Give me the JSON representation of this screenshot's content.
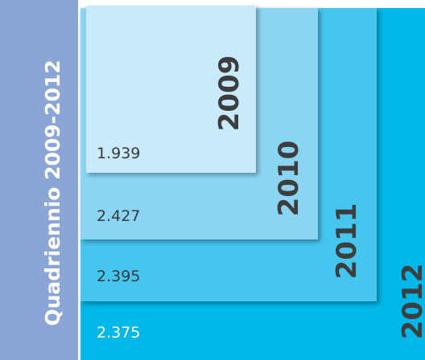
{
  "title": "Quadriennio 2009-2012",
  "items": [
    {
      "year": "2009",
      "value": "1.939"
    },
    {
      "year": "2010",
      "value": "2.427"
    },
    {
      "year": "2011",
      "value": "2.395"
    },
    {
      "year": "2012",
      "value": "2.375"
    }
  ]
}
